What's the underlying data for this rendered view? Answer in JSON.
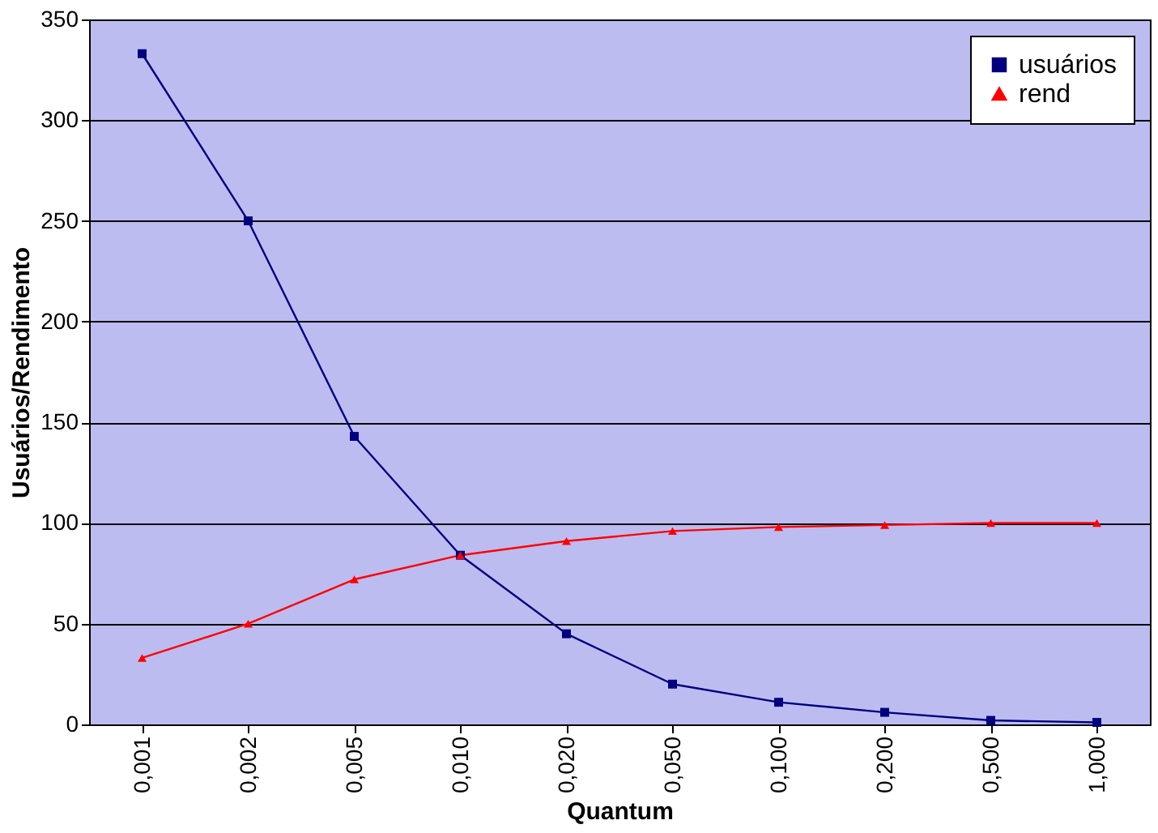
{
  "chart_data": {
    "type": "line",
    "xlabel": "Quantum",
    "ylabel": "Usuários/Rendimento",
    "categories": [
      "0,001",
      "0,002",
      "0,005",
      "0,010",
      "0,020",
      "0,050",
      "0,100",
      "0,200",
      "0,500",
      "1,000"
    ],
    "series": [
      {
        "name": "usuários",
        "color": "#000080",
        "marker": "square",
        "values": [
          333,
          250,
          143,
          84,
          45,
          20,
          11,
          6,
          2,
          1
        ]
      },
      {
        "name": "rend",
        "color": "#ff0000",
        "marker": "triangle",
        "values": [
          33,
          50,
          72,
          84,
          91,
          96,
          98,
          99,
          100,
          100
        ]
      }
    ],
    "ylim": [
      0,
      350
    ],
    "yticks": [
      0,
      50,
      100,
      150,
      200,
      250,
      300,
      350
    ],
    "grid": "y",
    "legend": "top right",
    "line_style": "solid"
  }
}
